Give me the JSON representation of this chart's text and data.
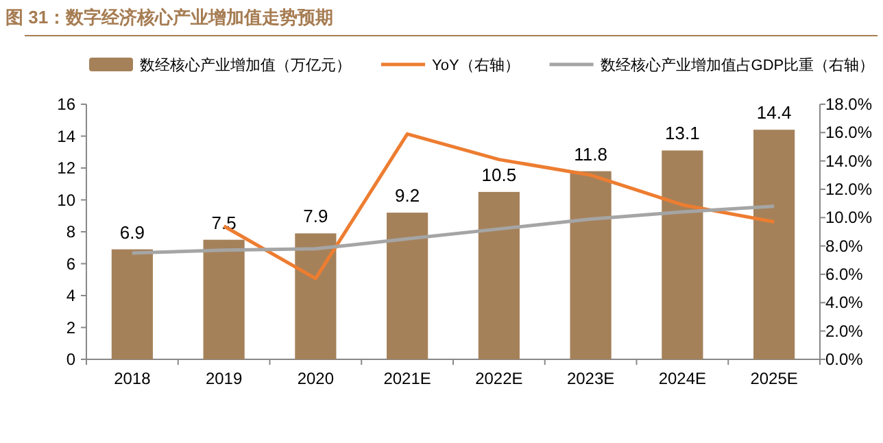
{
  "chart_data": {
    "type": "bar",
    "title": "图 31：数字经济核心产业增加值走势预期",
    "categories": [
      "2018",
      "2019",
      "2020",
      "2021E",
      "2022E",
      "2023E",
      "2024E",
      "2025E"
    ],
    "series": [
      {
        "name": "数经核心产业增加值（万亿元）",
        "color": "#a5815a",
        "values": [
          6.9,
          7.5,
          7.9,
          9.2,
          10.5,
          11.8,
          13.1,
          14.4
        ],
        "value_labels": [
          "6.9",
          "7.5",
          "7.9",
          "9.2",
          "10.5",
          "11.8",
          "13.1",
          "14.4"
        ]
      },
      {
        "name": "YoY（右轴）",
        "type": "line",
        "axis": "y2",
        "color": "#ed7d31",
        "values": [
          null,
          9.4,
          5.7,
          15.9,
          14.1,
          13.0,
          10.9,
          9.7
        ]
      },
      {
        "name": "数经核心产业增加值占GDP比重（右轴）",
        "type": "line",
        "axis": "y2",
        "color": "#a5a5a5",
        "values": [
          7.5,
          7.7,
          7.8,
          8.5,
          9.2,
          9.9,
          10.4,
          10.8
        ]
      }
    ],
    "ylim": [
      0,
      16
    ],
    "yticks": [
      0,
      2,
      4,
      6,
      8,
      10,
      12,
      14,
      16
    ],
    "y2lim": [
      0,
      18
    ],
    "y2ticks": [
      {
        "value": 0,
        "label": "0.0%"
      },
      {
        "value": 2,
        "label": "2.0%"
      },
      {
        "value": 4,
        "label": "4.0%"
      },
      {
        "value": 6,
        "label": "6.0%"
      },
      {
        "value": 8,
        "label": "8.0%"
      },
      {
        "value": 10,
        "label": "10.0%"
      },
      {
        "value": 12,
        "label": "12.0%"
      },
      {
        "value": 14,
        "label": "14.0%"
      },
      {
        "value": 16,
        "label": "16.0%"
      },
      {
        "value": 18,
        "label": "18.0%"
      }
    ],
    "legend": "top",
    "grid": false,
    "marker": "none",
    "line_style": "solid"
  }
}
